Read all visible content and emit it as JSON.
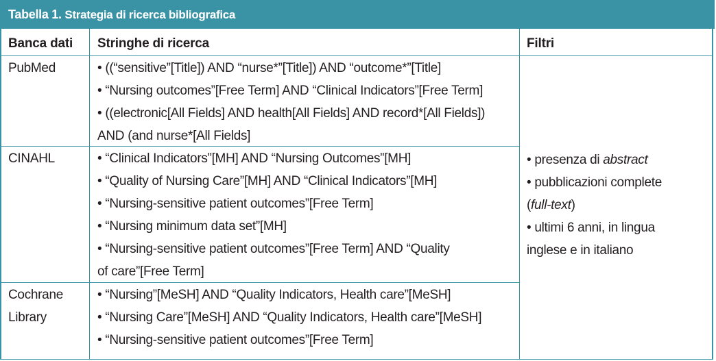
{
  "table": {
    "title_label": "Tabella 1.",
    "title_text": "Strategia di ricerca bibliografica",
    "headers": {
      "database": "Banca dati",
      "strings": "Stringhe di ricerca",
      "filters": "Filtri"
    },
    "rows": [
      {
        "database_lines": [
          "PubMed"
        ],
        "string_lines": [
          "• ((“sensitive”[Title]) AND “nurse*”[Title]) AND “outcome*”[Title]",
          "• “Nursing outcomes”[Free Term] AND “Clinical Indicators”[Free Term]",
          "• ((electronic[All Fields] AND health[All Fields] AND record*[All Fields])",
          "AND (and nurse*[All Fields]"
        ]
      },
      {
        "database_lines": [
          "CINAHL"
        ],
        "string_lines": [
          "• “Clinical Indicators”[MH] AND “Nursing Outcomes”[MH]",
          "• “Quality of Nursing Care”[MH] AND “Clinical Indicators”[MH]",
          "• “Nursing-sensitive patient outcomes”[Free Term]",
          "• “Nursing minimum data set”[MH]",
          "• “Nursing-sensitive patient outcomes”[Free Term] AND “Quality",
          "of care”[Free Term]"
        ]
      },
      {
        "database_lines": [
          "Cochrane",
          "Library"
        ],
        "string_lines": [
          "• “Nursing”[MeSH] AND “Quality Indicators, Health care”[MeSH]",
          "• “Nursing Care”[MeSH] AND “Quality Indicators, Health care”[MeSH]",
          "• “Nursing-sensitive patient outcomes”[Free Term]"
        ]
      }
    ],
    "filters": {
      "f1_prefix": "• presenza di ",
      "f1_italic": "abstract",
      "f2": "• pubblicazioni complete",
      "f2b_open": "(",
      "f2b_italic": "full-text",
      "f2b_close": ")",
      "f3": "• ultimi 6 anni, in lingua",
      "f3b": "inglese e in italiano"
    },
    "colors": {
      "accent": "#3a93a4",
      "text": "#231f20",
      "title_text": "#ffffff"
    }
  }
}
